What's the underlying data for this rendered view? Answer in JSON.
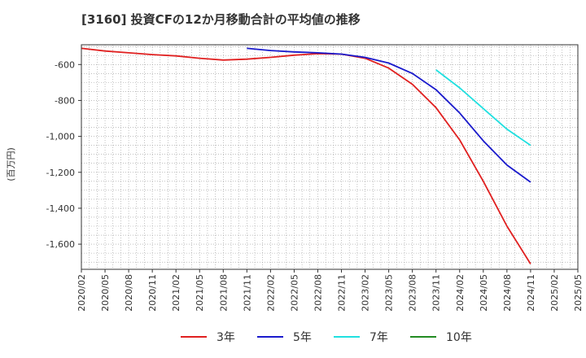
{
  "chart_data": {
    "type": "line",
    "title": "[3160]  投資CFの12か月移動合計の平均値の推移",
    "ylabel": "(百万円)",
    "xlabel": "",
    "ylim": [
      -1740,
      -490
    ],
    "yticks": [
      -600,
      -800,
      -1000,
      -1200,
      -1400,
      -1600
    ],
    "ytick_labels": [
      "-600",
      "-800",
      "-1,000",
      "-1,200",
      "-1,400",
      "-1,600"
    ],
    "xticks": [
      "2020/02",
      "2020/05",
      "2020/08",
      "2020/11",
      "2021/02",
      "2021/05",
      "2021/08",
      "2021/11",
      "2022/02",
      "2022/05",
      "2022/08",
      "2022/11",
      "2023/02",
      "2023/05",
      "2023/08",
      "2023/11",
      "2024/02",
      "2024/05",
      "2024/08",
      "2024/11",
      "2025/02",
      "2025/05"
    ],
    "grid": true,
    "legend_position": "bottom",
    "series": [
      {
        "name": "3年",
        "color": "#e02020",
        "points": [
          [
            "2020/02",
            -510
          ],
          [
            "2020/05",
            -525
          ],
          [
            "2020/08",
            -535
          ],
          [
            "2020/11",
            -545
          ],
          [
            "2021/02",
            -552
          ],
          [
            "2021/05",
            -565
          ],
          [
            "2021/08",
            -575
          ],
          [
            "2021/11",
            -570
          ],
          [
            "2022/02",
            -560
          ],
          [
            "2022/05",
            -548
          ],
          [
            "2022/08",
            -540
          ],
          [
            "2022/11",
            -542
          ],
          [
            "2023/02",
            -565
          ],
          [
            "2023/05",
            -620
          ],
          [
            "2023/08",
            -710
          ],
          [
            "2023/11",
            -840
          ],
          [
            "2024/02",
            -1020
          ],
          [
            "2024/05",
            -1250
          ],
          [
            "2024/08",
            -1500
          ],
          [
            "2024/11",
            -1710
          ]
        ]
      },
      {
        "name": "5年",
        "color": "#1a1acc",
        "points": [
          [
            "2021/11",
            -510
          ],
          [
            "2022/02",
            -522
          ],
          [
            "2022/05",
            -530
          ],
          [
            "2022/08",
            -535
          ],
          [
            "2022/11",
            -542
          ],
          [
            "2023/02",
            -560
          ],
          [
            "2023/05",
            -592
          ],
          [
            "2023/08",
            -650
          ],
          [
            "2023/11",
            -740
          ],
          [
            "2024/02",
            -870
          ],
          [
            "2024/05",
            -1025
          ],
          [
            "2024/08",
            -1160
          ],
          [
            "2024/11",
            -1255
          ]
        ]
      },
      {
        "name": "7年",
        "color": "#20e0e0",
        "points": [
          [
            "2023/11",
            -630
          ],
          [
            "2024/02",
            -730
          ],
          [
            "2024/05",
            -845
          ],
          [
            "2024/08",
            -960
          ],
          [
            "2024/11",
            -1050
          ]
        ]
      },
      {
        "name": "10年",
        "color": "#228b22",
        "points": []
      }
    ]
  }
}
